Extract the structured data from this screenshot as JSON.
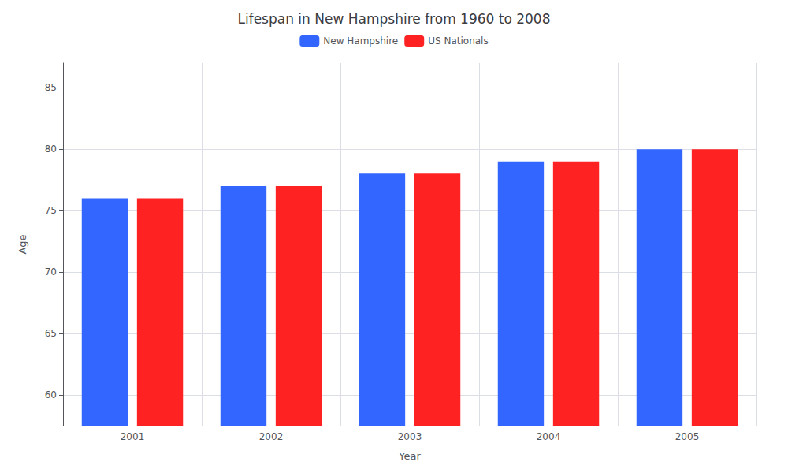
{
  "chart_data": {
    "type": "bar",
    "title": "Lifespan in New Hampshire from 1960 to 2008",
    "categories": [
      "2001",
      "2002",
      "2003",
      "2004",
      "2005"
    ],
    "series": [
      {
        "name": "New Hampshire",
        "color": "#3366ff",
        "values": [
          76,
          77,
          78,
          79,
          80
        ]
      },
      {
        "name": "US Nationals",
        "color": "#ff2222",
        "values": [
          76,
          77,
          78,
          79,
          80
        ]
      }
    ],
    "xlabel": "Year",
    "ylabel": "Age",
    "ylim": [
      57.5,
      87
    ],
    "yticks": [
      60,
      65,
      70,
      75,
      80,
      85
    ],
    "grid": true,
    "legend": "top"
  }
}
